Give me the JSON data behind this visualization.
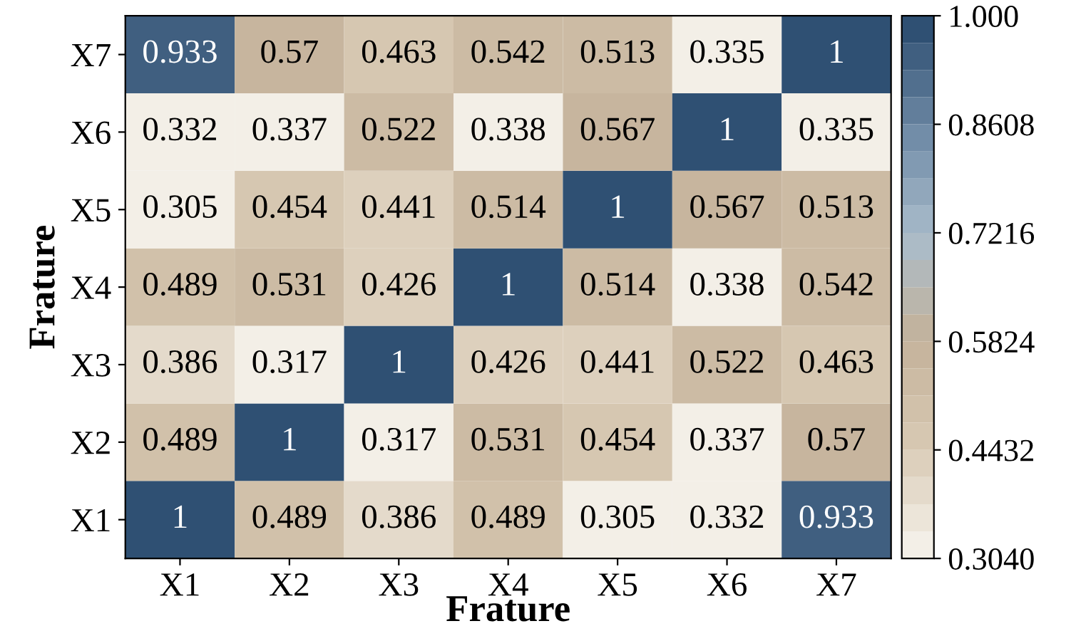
{
  "chart_data": {
    "type": "heatmap",
    "xlabel": "Frature",
    "ylabel": "Frature",
    "categories": [
      "X1",
      "X2",
      "X3",
      "X4",
      "X5",
      "X6",
      "X7"
    ],
    "y_categories": [
      "X7",
      "X6",
      "X5",
      "X4",
      "X3",
      "X2",
      "X1"
    ],
    "cells": [
      [
        0.933,
        0.57,
        0.463,
        0.542,
        0.513,
        0.335,
        1
      ],
      [
        0.332,
        0.337,
        0.522,
        0.338,
        0.567,
        1,
        0.335
      ],
      [
        0.305,
        0.454,
        0.441,
        0.514,
        1,
        0.567,
        0.513
      ],
      [
        0.489,
        0.531,
        0.426,
        1,
        0.514,
        0.338,
        0.542
      ],
      [
        0.386,
        0.317,
        1,
        0.426,
        0.441,
        0.522,
        0.463
      ],
      [
        0.489,
        1,
        0.317,
        0.531,
        0.454,
        0.337,
        0.57
      ],
      [
        1,
        0.489,
        0.386,
        0.489,
        0.305,
        0.332,
        0.933
      ]
    ],
    "data_labels": true,
    "clim": [
      0.304,
      1.0
    ],
    "cticks": [
      {
        "value": 0.304,
        "label": "0.3040"
      },
      {
        "value": 0.4432,
        "label": "0.4432"
      },
      {
        "value": 0.5824,
        "label": "0.5824"
      },
      {
        "value": 0.7216,
        "label": "0.7216"
      },
      {
        "value": 0.8608,
        "label": "0.8608"
      },
      {
        "value": 1.0,
        "label": "1.000"
      }
    ]
  }
}
